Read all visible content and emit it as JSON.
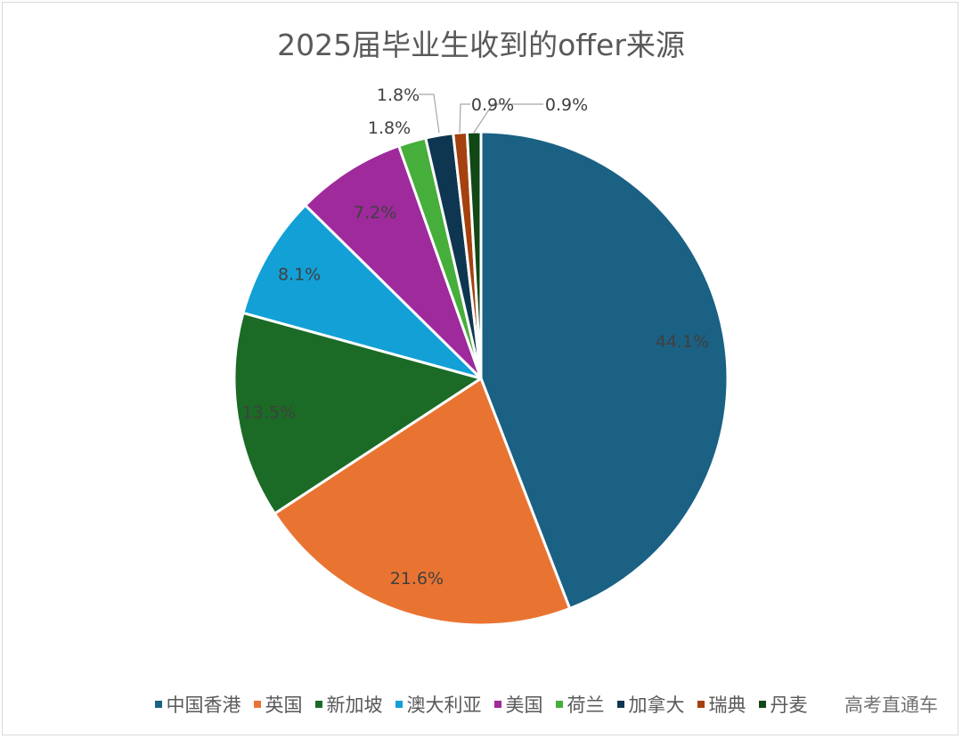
{
  "chart_data": {
    "type": "pie",
    "title": "2025届毕业生收到的offer来源",
    "categories": [
      "中国香港",
      "英国",
      "新加坡",
      "澳大利亚",
      "美国",
      "荷兰",
      "加拿大",
      "瑞典",
      "丹麦"
    ],
    "values": [
      44.1,
      21.6,
      13.5,
      8.1,
      7.2,
      1.8,
      1.8,
      0.9,
      0.9
    ],
    "labels": [
      "44.1%",
      "21.6%",
      "13.5%",
      "8.1%",
      "7.2%",
      "1.8%",
      "1.8%",
      "0.9%",
      "0.9%"
    ],
    "colors": [
      "#1a6184",
      "#e97432",
      "#1b6b26",
      "#12a0d6",
      "#9e2a9c",
      "#46ae3a",
      "#0f3650",
      "#a5400f",
      "#124716"
    ],
    "legend_position": "bottom"
  },
  "watermark": "高考直通车"
}
